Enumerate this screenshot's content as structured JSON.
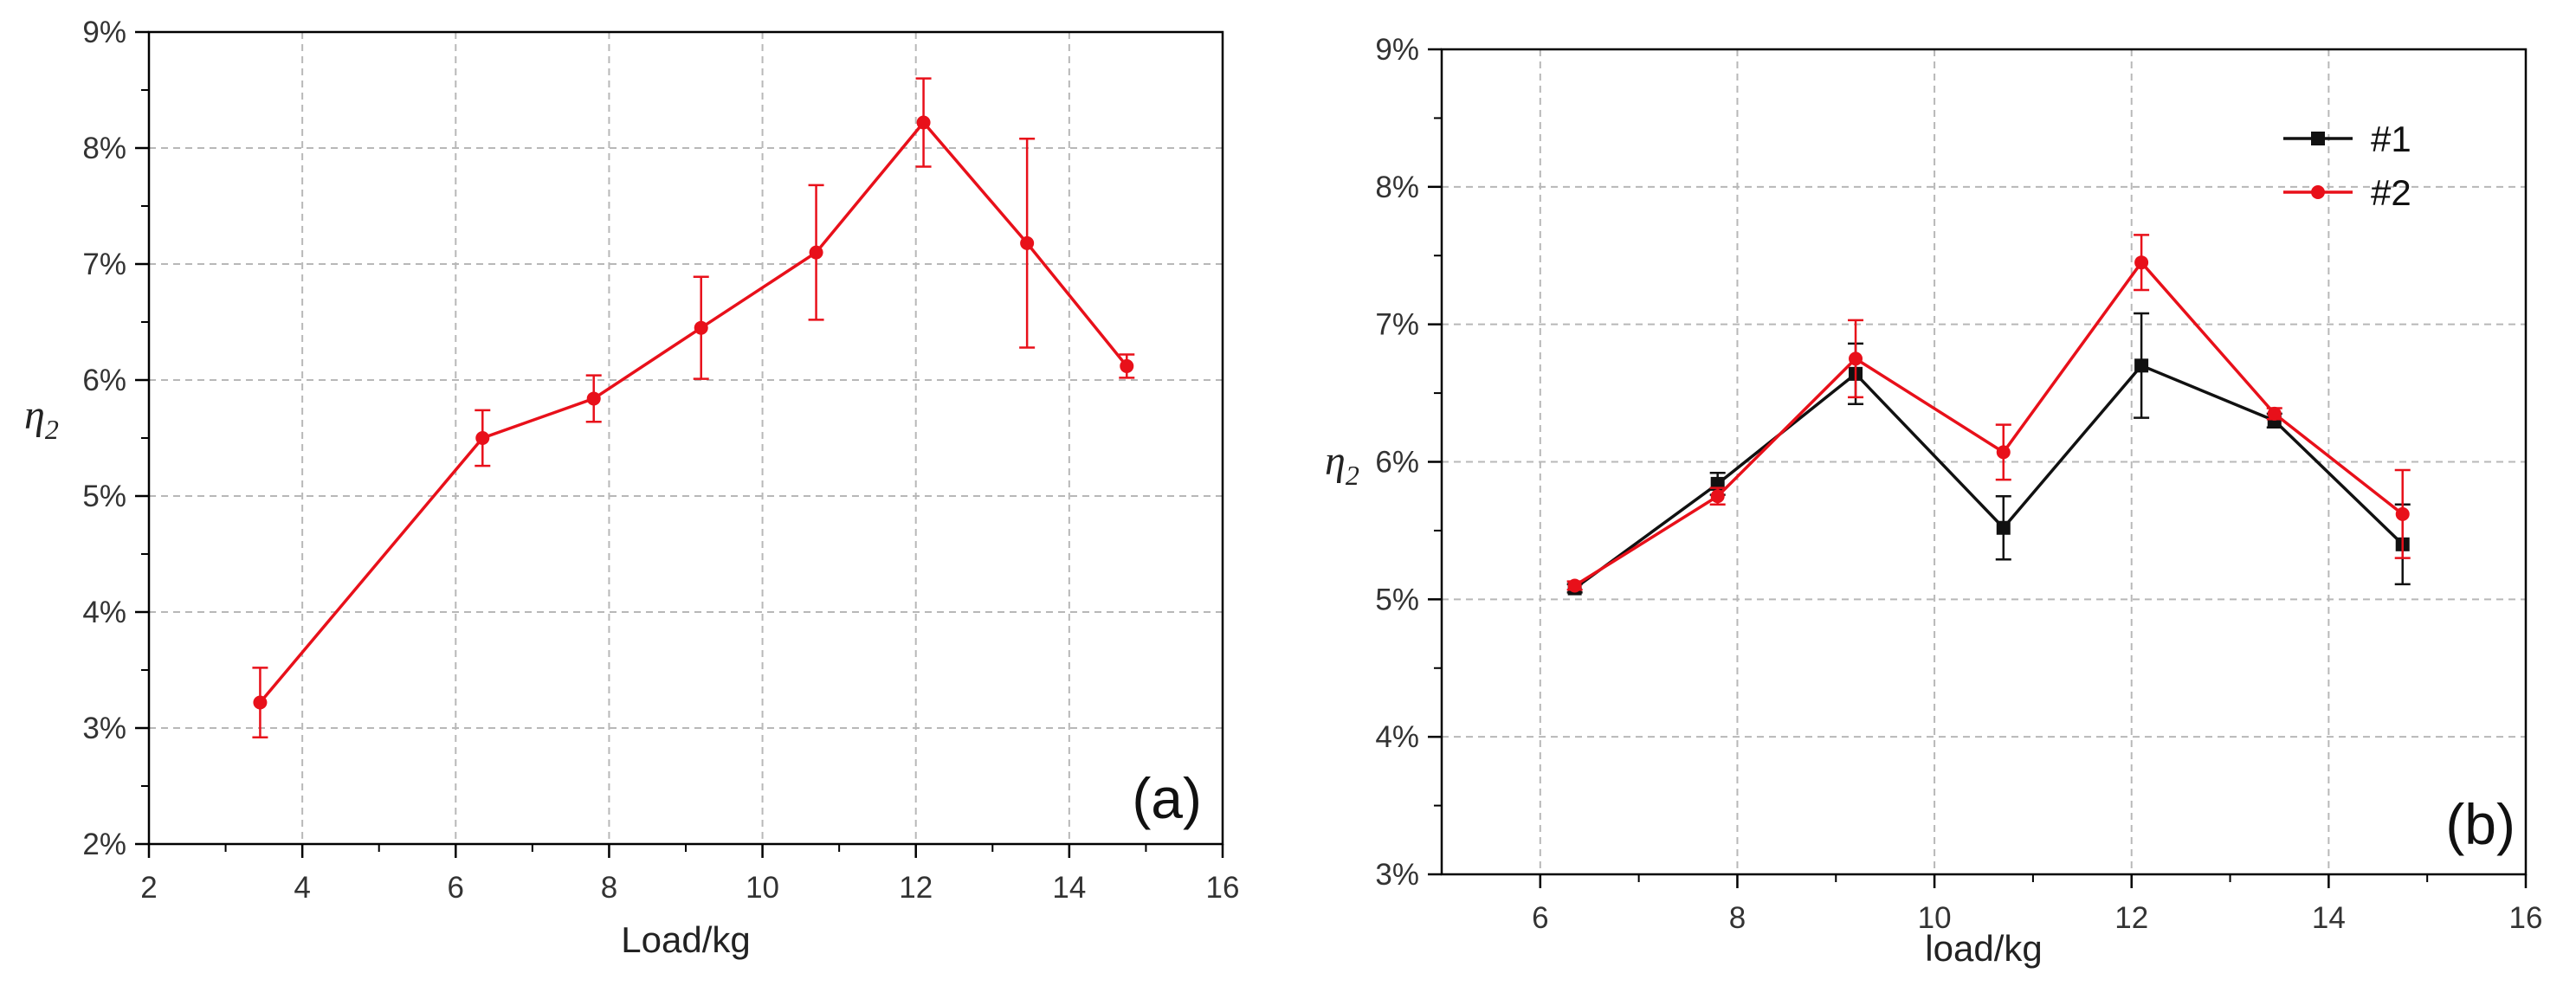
{
  "chart_data": [
    {
      "type": "line",
      "panel_label": "(a)",
      "xlabel": "Load/kg",
      "ylabel": "η",
      "ylabel_sub": "2",
      "xlim": [
        2,
        16
      ],
      "ylim": [
        2,
        9
      ],
      "xticks": [
        2,
        4,
        6,
        8,
        10,
        12,
        14,
        16
      ],
      "yticks": [
        2,
        3,
        4,
        5,
        6,
        7,
        8,
        9
      ],
      "ytick_labels": [
        "2%",
        "3%",
        "4%",
        "5%",
        "6%",
        "7%",
        "8%",
        "9%"
      ],
      "grid": true,
      "series": [
        {
          "color": "#e8101a",
          "marker": "circle",
          "x": [
            3.45,
            6.35,
            7.8,
            9.2,
            10.7,
            12.1,
            13.45,
            14.75
          ],
          "y": [
            3.22,
            5.5,
            5.84,
            6.45,
            7.1,
            8.22,
            7.18,
            6.12
          ],
          "err": [
            0.3,
            0.24,
            0.2,
            0.44,
            0.58,
            0.38,
            0.9,
            0.1
          ]
        }
      ]
    },
    {
      "type": "line",
      "panel_label": "(b)",
      "xlabel": "load/kg",
      "ylabel": "η",
      "ylabel_sub": "2",
      "xlim": [
        5,
        16
      ],
      "ylim": [
        3,
        9
      ],
      "xticks": [
        6,
        8,
        10,
        12,
        14,
        16
      ],
      "yticks": [
        3,
        4,
        5,
        6,
        7,
        8,
        9
      ],
      "ytick_labels": [
        "3%",
        "4%",
        "5%",
        "6%",
        "7%",
        "8%",
        "9%"
      ],
      "grid": true,
      "legend": "top-right",
      "series": [
        {
          "name": "#1",
          "color": "#111111",
          "marker": "square",
          "x": [
            6.35,
            7.8,
            9.2,
            10.7,
            12.1,
            13.45,
            14.75
          ],
          "y": [
            5.08,
            5.84,
            6.64,
            5.52,
            6.7,
            6.3,
            5.4
          ],
          "err": [
            0.03,
            0.08,
            0.22,
            0.23,
            0.38,
            0.05,
            0.29
          ]
        },
        {
          "name": "#2",
          "color": "#e8101a",
          "marker": "circle",
          "x": [
            6.35,
            7.8,
            9.2,
            10.7,
            12.1,
            13.45,
            14.75
          ],
          "y": [
            5.1,
            5.75,
            6.75,
            6.07,
            7.45,
            6.35,
            5.62
          ],
          "err": [
            0.03,
            0.06,
            0.28,
            0.2,
            0.2,
            0.04,
            0.32
          ]
        }
      ]
    }
  ]
}
